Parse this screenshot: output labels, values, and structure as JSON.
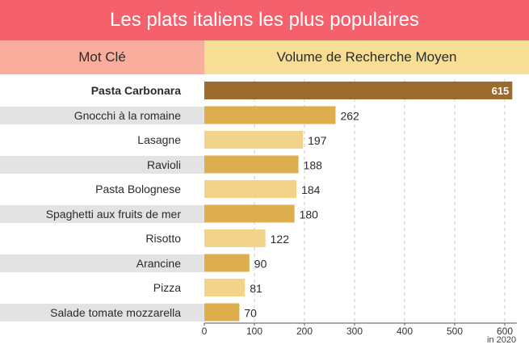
{
  "header": {
    "title": "Les plats italiens les plus populaires",
    "col_keyword": "Mot Clé",
    "col_volume": "Volume de Recherche Moyen"
  },
  "footnote": "in 2020",
  "colors": {
    "title_bg": "#f4606b",
    "keyword_header_bg": "#f9ae9d",
    "volume_header_bg": "#f6df94",
    "highlight_bar": "#9c6a2c",
    "bar_dark": "#dcae4e",
    "bar_light": "#f1d38a",
    "row_stripe": "#e3e3e3"
  },
  "chart_data": {
    "type": "bar",
    "orientation": "horizontal",
    "title": "Les plats italiens les plus populaires",
    "xlabel": "Volume de Recherche Moyen",
    "ylabel": "Mot Clé",
    "categories": [
      "Pasta Carbonara",
      "Gnocchi à la romaine",
      "Lasagne",
      "Ravioli",
      "Pasta Bolognese",
      "Spaghetti aux fruits de mer",
      "Risotto",
      "Arancine",
      "Pizza",
      "Salade tomate mozzarella"
    ],
    "values": [
      615,
      262,
      197,
      188,
      184,
      180,
      122,
      90,
      81,
      70
    ],
    "highlight_index": 0,
    "xlim": [
      0,
      600
    ],
    "xticks": [
      0,
      100,
      200,
      300,
      400,
      500,
      600
    ],
    "grid": true
  }
}
